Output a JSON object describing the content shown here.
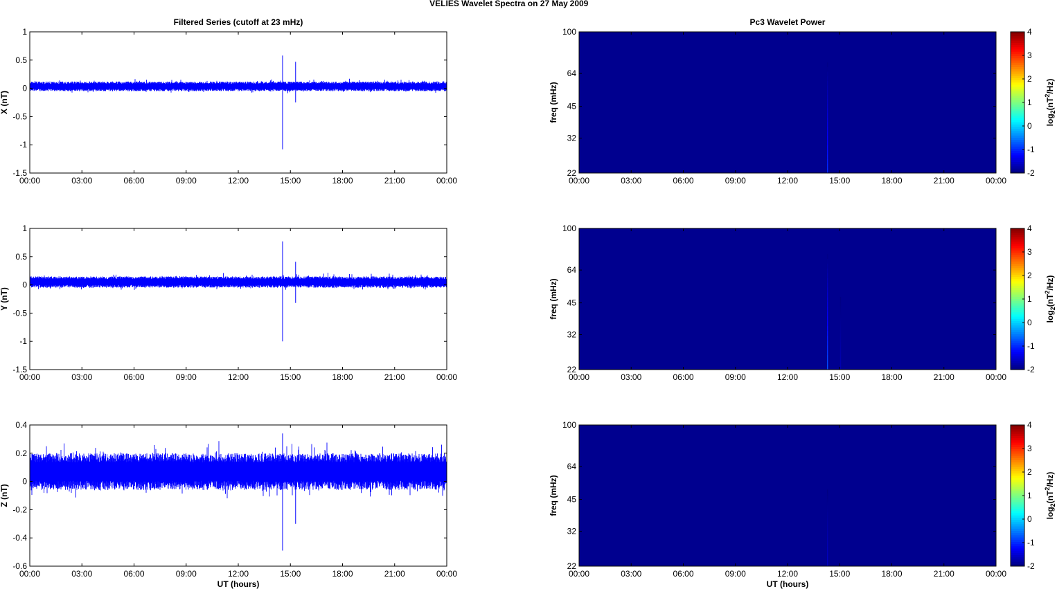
{
  "figure": {
    "title_left": "VELIES Wavelet Spectra on 27 May",
    "title_right": "2009",
    "left_column_title": "Filtered Series (cutoff at 23 mHz)",
    "right_column_title": "Pc3 Wavelet Power",
    "xlabel": "UT (hours)"
  },
  "colors": {
    "series": "#0000ff",
    "spectrogram_background": "#00008f",
    "spike_cyan": "#00ffff",
    "axis": "#000000"
  },
  "chart_data": [
    {
      "type": "line",
      "name": "x-series",
      "ylabel": "X (nT)",
      "ylim": [
        -1.5,
        1
      ],
      "yticks": [
        "1",
        "0.5",
        "0",
        "-0.5",
        "-1",
        "-1.5"
      ],
      "ytick_values": [
        1,
        0.5,
        0,
        -0.5,
        -1,
        -1.5
      ],
      "xticks": [
        "00:00",
        "03:00",
        "06:00",
        "09:00",
        "12:00",
        "15:00",
        "18:00",
        "21:00",
        "00:00"
      ],
      "xlim_hours": [
        0,
        24
      ],
      "noise_band": [
        -0.05,
        0.12
      ],
      "spikes": [
        {
          "hour": 14.55,
          "min": -1.08,
          "max": 0.58
        },
        {
          "hour": 15.3,
          "min": -0.25,
          "max": 0.47
        }
      ]
    },
    {
      "type": "line",
      "name": "y-series",
      "ylabel": "Y (nT)",
      "ylim": [
        -1.5,
        1
      ],
      "yticks": [
        "1",
        "0.5",
        "0",
        "-0.5",
        "-1",
        "-1.5"
      ],
      "ytick_values": [
        1,
        0.5,
        0,
        -0.5,
        -1,
        -1.5
      ],
      "xticks": [
        "00:00",
        "03:00",
        "06:00",
        "09:00",
        "12:00",
        "15:00",
        "18:00",
        "21:00",
        "00:00"
      ],
      "xlim_hours": [
        0,
        24
      ],
      "noise_band": [
        -0.05,
        0.15
      ],
      "spikes": [
        {
          "hour": 14.55,
          "min": -1.0,
          "max": 0.77
        },
        {
          "hour": 15.3,
          "min": -0.32,
          "max": 0.41
        }
      ]
    },
    {
      "type": "line",
      "name": "z-series",
      "ylabel": "Z (nT)",
      "ylim": [
        -0.6,
        0.4
      ],
      "yticks": [
        "0.4",
        "0.2",
        "0",
        "-0.2",
        "-0.4",
        "-0.6"
      ],
      "ytick_values": [
        0.4,
        0.2,
        0,
        -0.2,
        -0.4,
        -0.6
      ],
      "xticks": [
        "00:00",
        "03:00",
        "06:00",
        "09:00",
        "12:00",
        "15:00",
        "18:00",
        "21:00",
        "00:00"
      ],
      "xlim_hours": [
        0,
        24
      ],
      "noise_band": [
        -0.06,
        0.2
      ],
      "spikes": [
        {
          "hour": 14.55,
          "min": -0.49,
          "max": 0.34
        },
        {
          "hour": 15.3,
          "min": -0.3,
          "max": 0.15
        }
      ]
    },
    {
      "type": "heatmap",
      "name": "x-spectrogram",
      "ylabel": "freq (mHz)",
      "yticks": [
        "100",
        "64",
        "45",
        "32",
        "22"
      ],
      "ytick_values": [
        100,
        64,
        45,
        32,
        22
      ],
      "ylim": [
        22,
        100
      ],
      "yscale": "log",
      "xticks": [
        "00:00",
        "03:00",
        "06:00",
        "09:00",
        "12:00",
        "15:00",
        "18:00",
        "21:00",
        "00:00"
      ],
      "xlim_hours": [
        0,
        24
      ],
      "colorbar_label": "log2(nT2/Hz)",
      "colorbar_ticks": [
        "4",
        "3",
        "2",
        "1",
        "0",
        "-1",
        "-2"
      ],
      "colorbar_range": [
        -2,
        4
      ],
      "background_value": -2,
      "spikes": [
        {
          "hour": 14.3,
          "fmin": 22,
          "fmax": 72,
          "value": -1.0
        }
      ]
    },
    {
      "type": "heatmap",
      "name": "y-spectrogram",
      "ylabel": "freq (mHz)",
      "yticks": [
        "100",
        "64",
        "45",
        "32",
        "22"
      ],
      "ytick_values": [
        100,
        64,
        45,
        32,
        22
      ],
      "ylim": [
        22,
        100
      ],
      "yscale": "log",
      "xticks": [
        "00:00",
        "03:00",
        "06:00",
        "09:00",
        "12:00",
        "15:00",
        "18:00",
        "21:00",
        "00:00"
      ],
      "xlim_hours": [
        0,
        24
      ],
      "colorbar_label": "log2(nT2/Hz)",
      "colorbar_ticks": [
        "4",
        "3",
        "2",
        "1",
        "0",
        "-1",
        "-2"
      ],
      "colorbar_range": [
        -2,
        4
      ],
      "background_value": -2,
      "spikes": [
        {
          "hour": 14.3,
          "fmin": 22,
          "fmax": 76,
          "value": -0.8
        },
        {
          "hour": 15.05,
          "fmin": 22,
          "fmax": 48,
          "value": -1.7
        }
      ]
    },
    {
      "type": "heatmap",
      "name": "z-spectrogram",
      "ylabel": "freq (mHz)",
      "yticks": [
        "100",
        "64",
        "45",
        "32",
        "22"
      ],
      "ytick_values": [
        100,
        64,
        45,
        32,
        22
      ],
      "ylim": [
        22,
        100
      ],
      "yscale": "log",
      "xticks": [
        "00:00",
        "03:00",
        "06:00",
        "09:00",
        "12:00",
        "15:00",
        "18:00",
        "21:00",
        "00:00"
      ],
      "xlim_hours": [
        0,
        24
      ],
      "colorbar_label": "log2(nT2/Hz)",
      "colorbar_ticks": [
        "4",
        "3",
        "2",
        "1",
        "0",
        "-1",
        "-2"
      ],
      "colorbar_range": [
        -2,
        4
      ],
      "background_value": -2,
      "spikes": [
        {
          "hour": 14.3,
          "fmin": 22,
          "fmax": 50,
          "value": -1.6
        }
      ]
    }
  ]
}
